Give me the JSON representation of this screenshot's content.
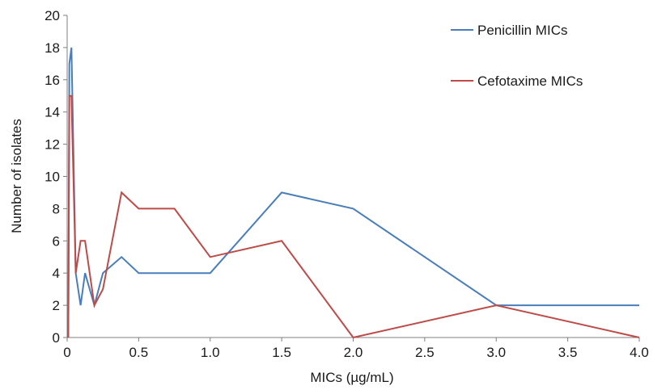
{
  "chart_data": {
    "type": "line",
    "title": "",
    "xlabel": "MICs (µg/mL)",
    "ylabel": "Number of isolates",
    "xlim": [
      0,
      4.0
    ],
    "ylim": [
      0,
      20
    ],
    "xticks": [
      0,
      0.5,
      1.0,
      1.5,
      2.0,
      2.5,
      3.0,
      3.5,
      4.0
    ],
    "xtick_labels": [
      "0",
      "0.5",
      "1.0",
      "1.5",
      "2.0",
      "2.5",
      "3.0",
      "3.5",
      "4.0"
    ],
    "yticks": [
      0,
      2,
      4,
      6,
      8,
      10,
      12,
      14,
      16,
      18,
      20
    ],
    "ytick_labels": [
      "0",
      "2",
      "4",
      "6",
      "8",
      "10",
      "12",
      "14",
      "16",
      "18",
      "20"
    ],
    "grid": false,
    "legend_position": "top-right",
    "series": [
      {
        "name": "Penicillin MICs",
        "color": "#4a7ebb",
        "x": [
          0.008,
          0.015,
          0.03,
          0.06,
          0.094,
          0.125,
          0.19,
          0.25,
          0.38,
          0.5,
          0.75,
          1.0,
          1.5,
          2.0,
          3.0,
          4.0
        ],
        "y": [
          0,
          17,
          18,
          4,
          2,
          4,
          2,
          4,
          5,
          4,
          4,
          4,
          9,
          8,
          2,
          2
        ]
      },
      {
        "name": "Cefotaxime MICs",
        "color": "#be4b48",
        "x": [
          0.008,
          0.015,
          0.03,
          0.06,
          0.094,
          0.125,
          0.19,
          0.25,
          0.38,
          0.5,
          0.75,
          1.0,
          1.5,
          2.0,
          3.0,
          4.0
        ],
        "y": [
          0,
          15,
          15,
          4,
          6,
          6,
          2,
          3,
          9,
          8,
          8,
          5,
          6,
          0,
          2,
          0
        ]
      }
    ]
  }
}
